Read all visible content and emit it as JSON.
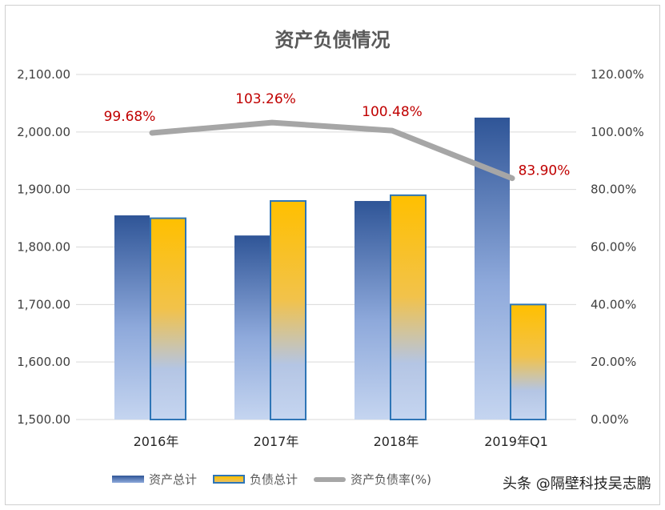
{
  "chart_data": {
    "type": "bar",
    "title": "资产负债情况",
    "categories": [
      "2016年",
      "2017年",
      "2018年",
      "2019年Q1"
    ],
    "series": [
      {
        "name": "资产总计",
        "kind": "bar",
        "axis": "left",
        "color": "#2f5597",
        "values": [
          1855,
          1820,
          1880,
          2025
        ]
      },
      {
        "name": "负债总计",
        "kind": "bar",
        "axis": "left",
        "color": "#ffc000",
        "values": [
          1850,
          1880,
          1890,
          1700
        ]
      },
      {
        "name": "资产负债率(%)",
        "kind": "line",
        "axis": "right",
        "color": "#a6a6a6",
        "values": [
          99.68,
          103.26,
          100.48,
          83.9
        ],
        "labels": [
          "99.68%",
          "103.26%",
          "100.48%",
          "83.90%"
        ]
      }
    ],
    "ylim": [
      1500,
      2100
    ],
    "y2lim": [
      0,
      120
    ],
    "yticks": [
      "1,500.00",
      "1,600.00",
      "1,700.00",
      "1,800.00",
      "1,900.00",
      "2,000.00",
      "2,100.00"
    ],
    "y2ticks": [
      "0.00%",
      "20.00%",
      "40.00%",
      "60.00%",
      "80.00%",
      "100.00%",
      "120.00%"
    ],
    "grid": true,
    "legend": "bottom",
    "label_color": "#c00000"
  },
  "watermark": "头条 @隔壁科技吴志鹏"
}
